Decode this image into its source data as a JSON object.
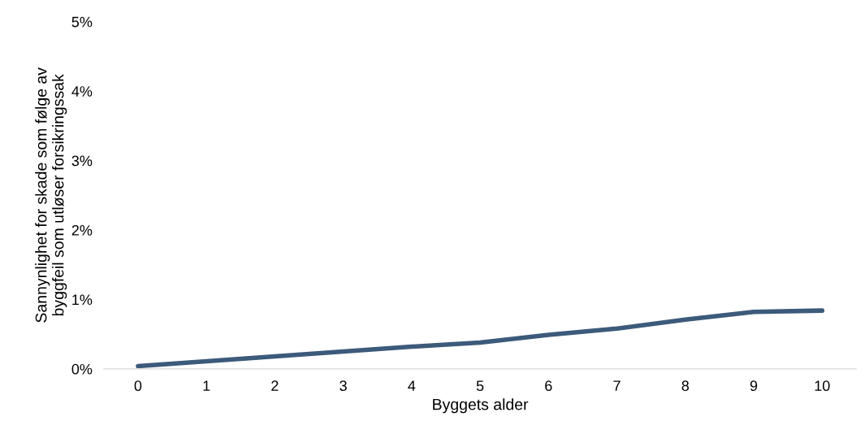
{
  "chart_data": {
    "type": "line",
    "xlabel": "Byggets alder",
    "ylabel": "Sannynlighet for skade som følge av\nbyggfeil som utløser forsikringssak",
    "categories": [
      "0",
      "1",
      "2",
      "3",
      "4",
      "5",
      "6",
      "7",
      "8",
      "9",
      "10"
    ],
    "series": [
      {
        "color": "#3d5a7a",
        "values": [
          0.04,
          0.11,
          0.18,
          0.25,
          0.32,
          0.38,
          0.49,
          0.58,
          0.71,
          0.82,
          0.84
        ]
      }
    ],
    "ylim": [
      0,
      5
    ],
    "yticks": [
      {
        "value": 0,
        "label": "0%"
      },
      {
        "value": 1,
        "label": "1%"
      },
      {
        "value": 2,
        "label": "2%"
      },
      {
        "value": 3,
        "label": "3%"
      },
      {
        "value": 4,
        "label": "4%"
      },
      {
        "value": 5,
        "label": "5%"
      }
    ],
    "grid": false,
    "marker": "none",
    "line_style": "solid"
  }
}
